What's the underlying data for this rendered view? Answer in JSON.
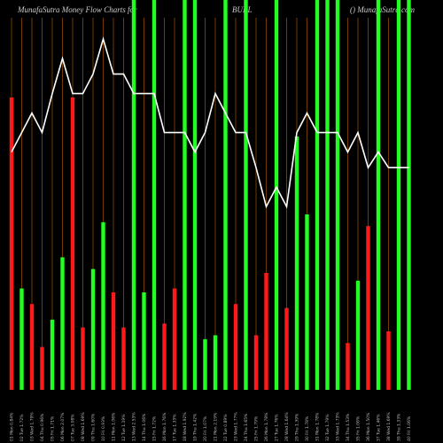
{
  "chart_data": {
    "type": "bar_line",
    "title_left": "MunafaSutra  Money Flow  Charts for",
    "title_middle": "BURL",
    "title_right": "() MunafaSutra.com",
    "categories": [
      "01 Mon 0.84%",
      "02 Tue 1.72%",
      "03 Wed 1.79%",
      "04 Thu 0.96%",
      "05 Fri 1.71%",
      "06 Mon 2.07%",
      "07 Tue 3.08%",
      "08 Wed 1.69%",
      "09 Thu 1.60%",
      "10 Fri 0.93%",
      "11 Mon 1.06%",
      "12 Tue 1.19%",
      "13 Wed 2.53%",
      "14 Thu 1.06%",
      "15 Fri 1.72%",
      "16 Mon 1.76%",
      "17 Tue 1.33%",
      "18 Wed 1.92%",
      "19 Thu 1.42%",
      "20 Fri 1.07%",
      "21 Mon 2.19%",
      "22 Tue 0.89%",
      "23 Wed 1.77%",
      "24 Thu 1.65%",
      "25 Fri 1.79%",
      "26 Mon 1.78%",
      "27 Tue 1.76%",
      "28 Wed 1.64%",
      "29 Thu 1.39%",
      "30 Fri 1.78%",
      "31 Mon 1.78%",
      "32 Tue 1.79%",
      "33 Wed 1.73%",
      "34 Thu 1.53%",
      "35 Fri 1.06%",
      "36 Mon 1.50%",
      "37 Tue 1.46%",
      "38 Wed 1.69%",
      "39 Thu 1.33%",
      "40 Fri 1.06%"
    ],
    "bars": {
      "values": [
        75,
        26,
        22,
        11,
        18,
        34,
        75,
        16,
        31,
        43,
        25,
        16,
        100,
        25,
        100,
        17,
        26,
        100,
        100,
        13,
        14,
        100,
        22,
        100,
        14,
        30,
        100,
        21,
        65,
        45,
        100,
        100,
        100,
        12,
        28,
        42,
        100,
        15,
        100,
        100
      ],
      "colors": [
        "#ff1a1a",
        "#22ff22",
        "#ff1a1a",
        "#ff1a1a",
        "#22ff22",
        "#22ff22",
        "#ff1a1a",
        "#ff1a1a",
        "#22ff22",
        "#22ff22",
        "#ff1a1a",
        "#ff1a1a",
        "#22ff22",
        "#22ff22",
        "#22ff22",
        "#ff1a1a",
        "#ff1a1a",
        "#22ff22",
        "#22ff22",
        "#22ff22",
        "#22ff22",
        "#22ff22",
        "#ff1a1a",
        "#22ff22",
        "#ff1a1a",
        "#ff1a1a",
        "#22ff22",
        "#ff1a1a",
        "#22ff22",
        "#22ff22",
        "#22ff22",
        "#22ff22",
        "#22ff22",
        "#ff1a1a",
        "#22ff22",
        "#ff1a1a",
        "#22ff22",
        "#ff1a1a",
        "#22ff22",
        "#22ff22"
      ]
    },
    "line": {
      "color": "#ffffff",
      "values": [
        61,
        66,
        71,
        66,
        76,
        85,
        76,
        76,
        81,
        90,
        81,
        81,
        76,
        76,
        76,
        66,
        66,
        66,
        61,
        66,
        76,
        71,
        66,
        66,
        57,
        47,
        52,
        47,
        66,
        71,
        66,
        66,
        66,
        61,
        66,
        57,
        61,
        57,
        57,
        57
      ]
    },
    "ylim": [
      0,
      100
    ],
    "grid": true,
    "grid_color": "#8a4a00"
  }
}
